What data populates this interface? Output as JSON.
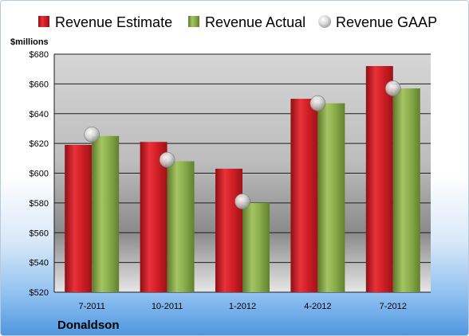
{
  "chart_data": {
    "type": "bar",
    "title": "",
    "ylabel": "$millions",
    "xlabel": "",
    "company": "Donaldson",
    "categories": [
      "7-2011",
      "10-2011",
      "1-2012",
      "4-2012",
      "7-2012"
    ],
    "ylim": [
      520,
      680
    ],
    "yticks": [
      520,
      540,
      560,
      580,
      600,
      620,
      640,
      660,
      680
    ],
    "ytick_labels": [
      "$520",
      "$540",
      "$560",
      "$580",
      "$600",
      "$620",
      "$640",
      "$660",
      "$680"
    ],
    "grid": true,
    "legend_position": "top",
    "series": [
      {
        "name": "Revenue Estimate",
        "type": "bar",
        "color": "#d42027",
        "values": [
          619,
          621,
          603,
          650,
          672
        ]
      },
      {
        "name": "Revenue Actual",
        "type": "bar",
        "color": "#8eb04e",
        "values": [
          625,
          608,
          580,
          647,
          657
        ]
      },
      {
        "name": "Revenue GAAP",
        "type": "marker",
        "color": "#c7c7c7",
        "values": [
          626,
          609,
          581,
          647,
          657
        ]
      }
    ]
  }
}
